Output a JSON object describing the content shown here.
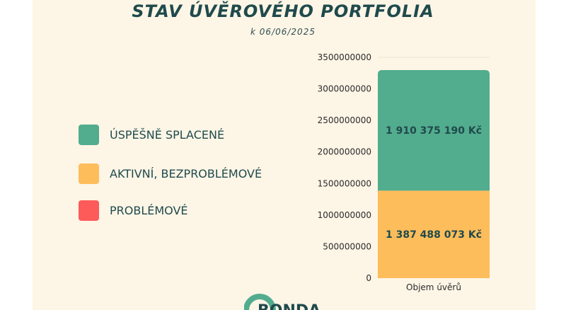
{
  "title": "STAV ÚVĚROVÉHO PORTFOLIA",
  "subtitle": "k 06/06/2025",
  "legend": [
    {
      "label": "ÚSPĚŠNĚ SPLACENÉ",
      "color": "#52ac8e"
    },
    {
      "label": "AKTIVNÍ, BEZPROBLÉMOVÉ",
      "color": "#fdbd5b"
    },
    {
      "label": "PROBLÉMOVÉ",
      "color": "#fd5a5a"
    }
  ],
  "logo": {
    "text": "BONDA",
    "color": "#1f4a4c",
    "accent": "#52ac8e"
  },
  "chart_data": {
    "type": "bar",
    "stacked": true,
    "categories": [
      "Objem úvěrů"
    ],
    "series": [
      {
        "name": "AKTIVNÍ, BEZPROBLÉMOVÉ",
        "values": [
          1387488073
        ],
        "label": "1 387 488 073 Kč",
        "color": "#fdbd5b"
      },
      {
        "name": "ÚSPĚŠNĚ SPLACENÉ",
        "values": [
          1910375190
        ],
        "label": "1 910 375 190 Kč",
        "color": "#52ac8e"
      }
    ],
    "yticks": [
      "0",
      "500000000",
      "1000000000",
      "1500000000",
      "2000000000",
      "2500000000",
      "3000000000",
      "3500000000"
    ],
    "ylim": [
      0,
      3500000000
    ],
    "grid": false,
    "legend_position": "left"
  }
}
